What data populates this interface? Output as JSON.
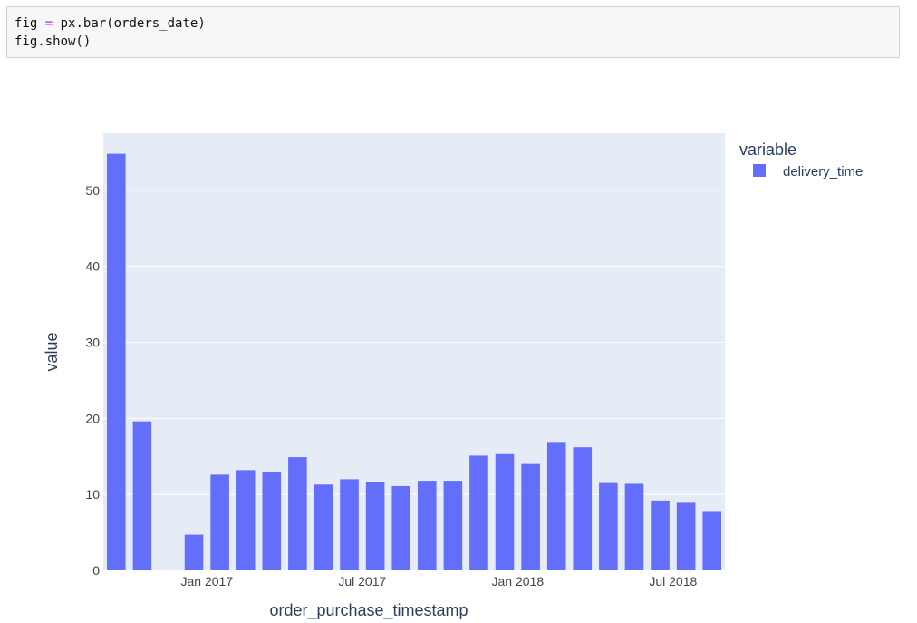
{
  "code": {
    "line1": {
      "var": "fig",
      "op": "=",
      "rest": "px.bar(orders_date)"
    },
    "line2": "fig.show()"
  },
  "chart_data": {
    "type": "bar",
    "xlabel": "order_purchase_timestamp",
    "ylabel": "value",
    "legend_title": "variable",
    "legend_position": "top-right",
    "grid": true,
    "colors": {
      "bar": "#636efa",
      "plot_bg": "#e5ecf6",
      "grid": "#ffffff"
    },
    "x_tick_labels": [
      "Jan 2017",
      "Jul 2017",
      "Jan 2018",
      "Jul 2018"
    ],
    "y_ticks": [
      0,
      10,
      20,
      30,
      40,
      50
    ],
    "ylim": [
      0,
      57.5
    ],
    "series": [
      {
        "name": "delivery_time",
        "x": [
          "2016-09",
          "2016-10",
          "2016-11",
          "2016-12",
          "2017-01",
          "2017-02",
          "2017-03",
          "2017-04",
          "2017-05",
          "2017-06",
          "2017-07",
          "2017-08",
          "2017-09",
          "2017-10",
          "2017-11",
          "2017-12",
          "2018-01",
          "2018-02",
          "2018-03",
          "2018-04",
          "2018-05",
          "2018-06",
          "2018-07",
          "2018-08"
        ],
        "values": [
          54.8,
          19.6,
          0,
          4.7,
          12.6,
          13.2,
          12.9,
          14.9,
          11.3,
          12.0,
          11.6,
          11.1,
          11.8,
          11.8,
          15.1,
          15.3,
          14.0,
          16.9,
          16.2,
          11.5,
          11.4,
          9.2,
          8.9,
          7.7
        ]
      }
    ]
  }
}
